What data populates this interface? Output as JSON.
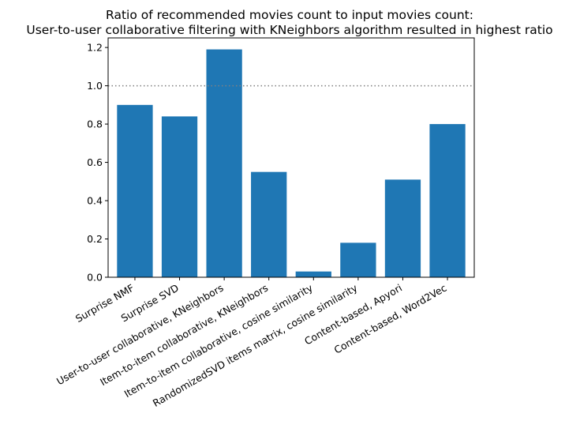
{
  "chart_data": {
    "type": "bar",
    "title": "Ratio of recommended movies count to input movies count:",
    "subtitle": "User-to-user collaborative filtering with KNeighbors algorithm resulted in highest ratio",
    "xlabel": "",
    "ylabel": "",
    "categories": [
      "Surprise NMF",
      "Surprise SVD",
      "User-to-user collaborative, KNeighbors",
      "Item-to-item collaborative, KNeighbors",
      "Item-to-item collaborative, cosine similarity",
      "RandomizedSVD items matrix, cosine similarity",
      "Content-based, Apyori",
      "Content-based, Word2Vec"
    ],
    "values": [
      0.9,
      0.84,
      1.19,
      0.55,
      0.03,
      0.18,
      0.51,
      0.8
    ],
    "ylim": [
      0,
      1.25
    ],
    "yticks": [
      0.0,
      0.2,
      0.4,
      0.6,
      0.8,
      1.0,
      1.2
    ],
    "ytick_labels": [
      "0.0",
      "0.2",
      "0.4",
      "0.6",
      "0.8",
      "1.0",
      "1.2"
    ],
    "reference_line": {
      "y": 1.0,
      "style": "dotted",
      "color": "#808080"
    },
    "bar_color": "#1f77b4",
    "grid": false,
    "legend": "none"
  }
}
